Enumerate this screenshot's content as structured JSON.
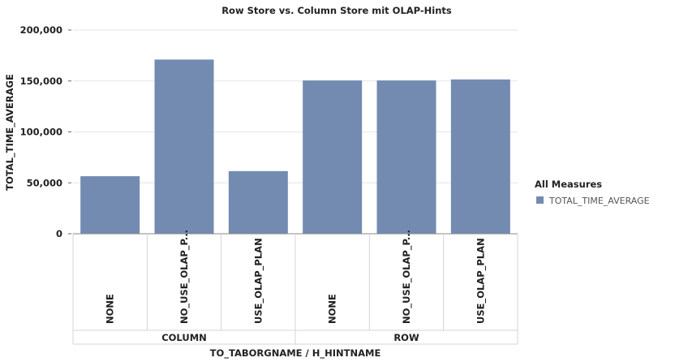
{
  "chart_data": {
    "type": "bar",
    "title": "Row Store vs. Column Store mit OLAP-Hints",
    "xlabel": "TO_TABORGNAME / H_HINTNAME",
    "ylabel": "TOTAL_TIME_AVERAGE",
    "ylim": [
      0,
      200000
    ],
    "yticks": [
      "0",
      "50,000",
      "100,000",
      "150,000",
      "200,000"
    ],
    "yticks_values": [
      0,
      50000,
      100000,
      150000,
      200000
    ],
    "grid": true,
    "legend_position": "right",
    "groups": [
      {
        "label": "COLUMN",
        "categories": [
          "NONE",
          "NO_USE_OLAP_P...",
          "USE_OLAP_PLAN"
        ]
      },
      {
        "label": "ROW",
        "categories": [
          "NONE",
          "NO_USE_OLAP_P...",
          "USE_OLAP_PLAN"
        ]
      }
    ],
    "categories": [
      "NONE",
      "NO_USE_OLAP_P...",
      "USE_OLAP_PLAN",
      "NONE",
      "NO_USE_OLAP_P...",
      "USE_OLAP_PLAN"
    ],
    "series": [
      {
        "name": "TOTAL_TIME_AVERAGE",
        "color": "#738bb1",
        "values": [
          56500,
          171000,
          61500,
          150500,
          150500,
          151500
        ]
      }
    ],
    "legend_title": "All Measures"
  }
}
